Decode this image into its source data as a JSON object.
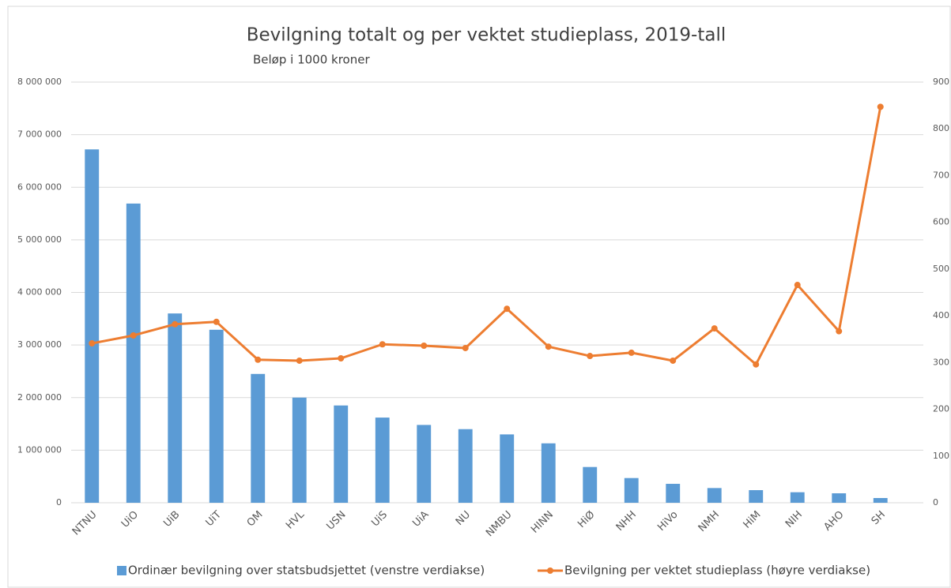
{
  "chart_data": {
    "type": "bar_line",
    "title": "Bevilgning totalt og per vektet studieplass, 2019-tall",
    "subtitle": "Beløp i 1000 kroner",
    "categories": [
      "NTNU",
      "UiO",
      "UiB",
      "UiT",
      "OM",
      "HVL",
      "USN",
      "UiS",
      "UiA",
      "NU",
      "NMBU",
      "HINN",
      "HiØ",
      "NHH",
      "HiVo",
      "NMH",
      "HiM",
      "NIH",
      "AHO",
      "SH"
    ],
    "series": [
      {
        "name": "Ordinær bevilgning over statsbudsjettet (venstre verdiakse)",
        "type": "bar",
        "color": "#5b9bd5",
        "values": [
          6720000,
          5690000,
          3600000,
          3290000,
          2450000,
          2000000,
          1850000,
          1620000,
          1480000,
          1400000,
          1300000,
          1130000,
          680000,
          470000,
          360000,
          280000,
          240000,
          200000,
          180000,
          90000
        ]
      },
      {
        "name": "Bevilgning per vektet studieplass (høyre verdiakse)",
        "type": "line",
        "axis": "y2",
        "color": "#ed7d31",
        "values": [
          341,
          358,
          382,
          387,
          306,
          304,
          309,
          339,
          336,
          331,
          415,
          334,
          314,
          321,
          304,
          373,
          296,
          466,
          367,
          847
        ]
      }
    ],
    "ylim": [
      0,
      8000000
    ],
    "yticks": [
      0,
      {
        "value": 1000000,
        "label": "1 000 000"
      },
      {
        "value": 2000000,
        "label": "2 000 000"
      },
      {
        "value": 3000000,
        "label": "3 000 000"
      },
      {
        "value": 4000000,
        "label": "4 000 000"
      },
      {
        "value": 5000000,
        "label": "5 000 000"
      },
      {
        "value": 6000000,
        "label": "6 000 000"
      },
      {
        "value": 7000000,
        "label": "7 000 000"
      },
      {
        "value": 8000000,
        "label": "8 000 000"
      }
    ],
    "y2lim": [
      0,
      900
    ],
    "y2ticks": [
      0,
      100,
      200,
      300,
      400,
      500,
      600,
      700,
      800,
      900
    ],
    "grid": true,
    "legend": "bottom"
  }
}
